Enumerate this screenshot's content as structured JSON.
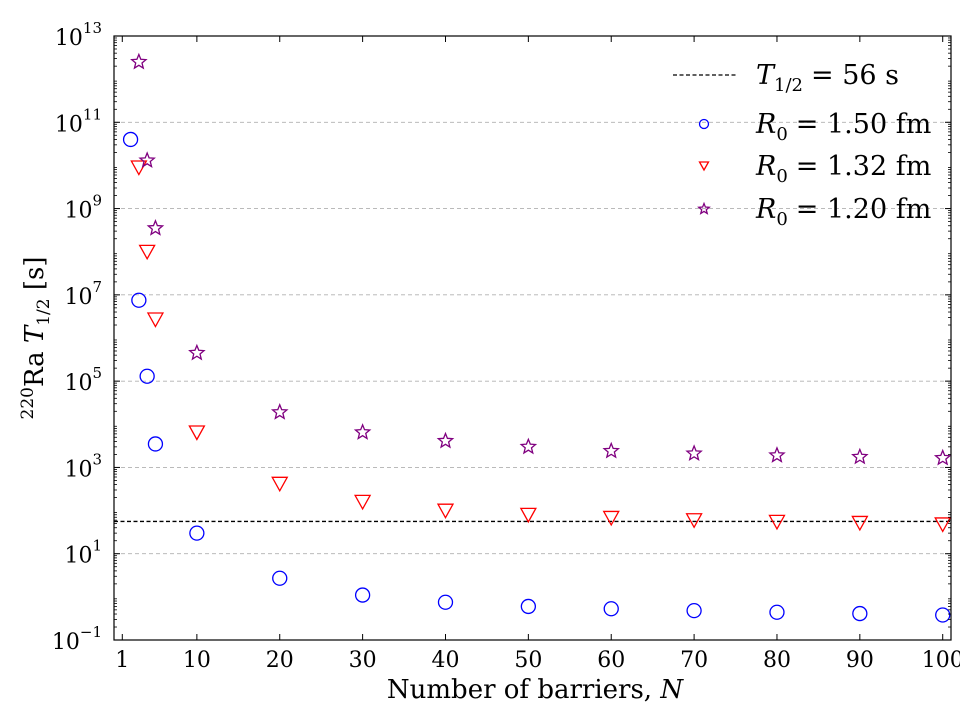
{
  "chart_data": {
    "type": "scatter",
    "title": "",
    "xlabel": "Number of barriers, N",
    "ylabel": "220Ra T1/2 [s]",
    "xlim": [
      0,
      101
    ],
    "ylim": [
      0.1,
      10000000000000.0
    ],
    "yscale": "log",
    "x_ticks": [
      1,
      10,
      20,
      30,
      40,
      50,
      60,
      70,
      80,
      90,
      100
    ],
    "y_ticks": [
      {
        "value": 0.1,
        "base": "10",
        "exp": "−1"
      },
      {
        "value": 10,
        "base": "10",
        "exp": "1"
      },
      {
        "value": 1000,
        "base": "10",
        "exp": "3"
      },
      {
        "value": 100000,
        "base": "10",
        "exp": "5"
      },
      {
        "value": 10000000,
        "base": "10",
        "exp": "7"
      },
      {
        "value": 1000000000,
        "base": "10",
        "exp": "9"
      },
      {
        "value": 100000000000,
        "base": "10",
        "exp": "11"
      },
      {
        "value": 10000000000000,
        "base": "10",
        "exp": "13"
      }
    ],
    "grid": "y-major-dashed",
    "legend_position": "top-right",
    "reference_line": {
      "value": 56,
      "label": "T1/2 = 56 s",
      "color": "#000000"
    },
    "series": [
      {
        "name": "R0 = 1.50 fm",
        "marker": "circle",
        "color": "#0000ff",
        "x": [
          2,
          3,
          4,
          5,
          10,
          20,
          30,
          40,
          50,
          60,
          70,
          80,
          90,
          100
        ],
        "y": [
          40000000000.0,
          7500000.0,
          130000.0,
          3500.0,
          30,
          2.7,
          1.1,
          0.75,
          0.6,
          0.53,
          0.48,
          0.44,
          0.41,
          0.38
        ]
      },
      {
        "name": "R0 = 1.32 fm",
        "marker": "triangle-down",
        "color": "#ff0000",
        "x": [
          3,
          4,
          5,
          10,
          20,
          30,
          40,
          50,
          60,
          70,
          80,
          90,
          100
        ],
        "y": [
          9000000000.0,
          100000000.0,
          2700000.0,
          6500.0,
          420,
          160,
          100,
          80,
          68,
          60,
          55,
          52,
          48
        ]
      },
      {
        "name": "R0 = 1.20 fm",
        "marker": "star",
        "color": "#800080",
        "x": [
          3,
          4,
          5,
          10,
          20,
          30,
          40,
          50,
          60,
          70,
          80,
          90,
          100
        ],
        "y": [
          2500000000000.0,
          13000000000.0,
          350000000.0,
          450000.0,
          19000.0,
          6500.0,
          4100.0,
          3000.0,
          2400.0,
          2100.0,
          1900.0,
          1750.0,
          1650.0
        ]
      }
    ]
  },
  "legend": {
    "ref": {
      "sym": "T",
      "sub": "1/2",
      "rest": "= 56 s"
    },
    "s0": {
      "sym": "R",
      "sub": "0",
      "rest": "= 1.50 fm"
    },
    "s1": {
      "sym": "R",
      "sub": "0",
      "rest": "= 1.32 fm"
    },
    "s2": {
      "sym": "R",
      "sub": "0",
      "rest": "= 1.20 fm"
    }
  },
  "labels": {
    "xlabel_main": "Number of barriers, ",
    "xlabel_var": "N",
    "ylabel_iso": "220",
    "ylabel_el": "Ra ",
    "ylabel_sym": "T",
    "ylabel_sub": "1/2",
    "ylabel_unit": " [s]"
  }
}
